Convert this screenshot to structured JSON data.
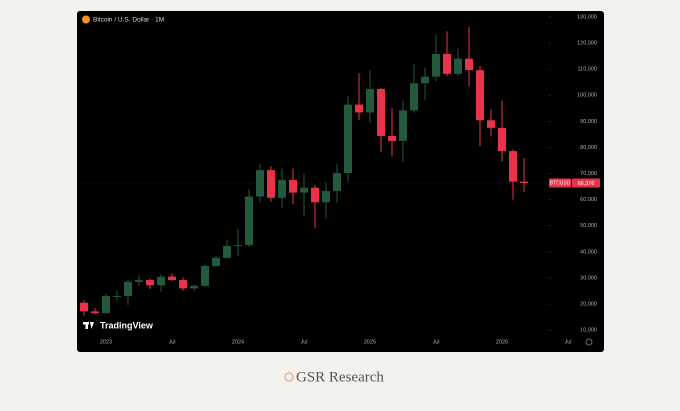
{
  "chart_data": {
    "type": "candlestick",
    "title": "Bitcoin / U.S. Dollar · 1M",
    "watermark": "TradingView",
    "footer": "GSR Research",
    "categories": [
      null,
      null,
      "2023",
      null,
      null,
      null,
      null,
      null,
      "Jul",
      null,
      null,
      null,
      null,
      null,
      "2024",
      null,
      null,
      null,
      null,
      null,
      "Jul",
      null,
      null,
      null,
      null,
      null,
      "2025",
      null,
      null,
      null,
      null,
      null,
      "Jul",
      null,
      null,
      null,
      null,
      null,
      "2026",
      null,
      null,
      null,
      null,
      null,
      "Jul"
    ],
    "open": [
      20500,
      17200,
      16500,
      23100,
      23100,
      28500,
      29200,
      27200,
      30500,
      29200,
      26000,
      27000,
      34600,
      37700,
      42300,
      42600,
      61200,
      71300,
      60700,
      67500,
      62700,
      64600,
      59000,
      63300,
      70200,
      96400,
      93400,
      102400,
      84400,
      82500,
      94200,
      104600,
      107100,
      115800,
      108200,
      114000,
      109600,
      90400,
      87500,
      78600,
      66900,
      null,
      null,
      null,
      null
    ],
    "high": [
      21500,
      18400,
      23900,
      25200,
      29200,
      31000,
      29800,
      31400,
      31800,
      30200,
      27500,
      35200,
      38400,
      44700,
      48900,
      64000,
      73800,
      72800,
      71900,
      71900,
      70000,
      65600,
      66500,
      73600,
      99600,
      108400,
      109600,
      102800,
      95000,
      97900,
      112000,
      110600,
      123200,
      124500,
      117900,
      126200,
      111200,
      94600,
      97900,
      79300,
      76000,
      null,
      null,
      null,
      null
    ],
    "low": [
      15500,
      16300,
      16500,
      21400,
      19600,
      27000,
      25800,
      24800,
      28900,
      25200,
      24900,
      26600,
      34100,
      37600,
      38500,
      41900,
      59000,
      59200,
      56600,
      58400,
      53500,
      49000,
      52600,
      58900,
      66800,
      90500,
      89200,
      78200,
      76600,
      74400,
      93300,
      98200,
      105300,
      107300,
      107300,
      103500,
      80600,
      84400,
      74500,
      60000,
      63000,
      null,
      null,
      null,
      null
    ],
    "close": [
      17200,
      16500,
      23100,
      23100,
      28500,
      29200,
      27200,
      30500,
      29200,
      26000,
      27000,
      34600,
      37700,
      42300,
      42600,
      61200,
      71300,
      60700,
      67500,
      62700,
      64600,
      59000,
      63300,
      70200,
      96400,
      93400,
      102400,
      84400,
      82500,
      94200,
      104600,
      107100,
      115800,
      108200,
      114000,
      109600,
      90400,
      87500,
      78600,
      66900,
      66376,
      null,
      null,
      null,
      null
    ],
    "up_color": "#235a3c",
    "down_color": "#e8334a",
    "ylim": [
      7000,
      131500
    ],
    "yticks": [
      {
        "value": 10000,
        "label": "10,000"
      },
      {
        "value": 20000,
        "label": "20,000"
      },
      {
        "value": 30000,
        "label": "30,000"
      },
      {
        "value": 40000,
        "label": "40,000"
      },
      {
        "value": 50000,
        "label": "50,000"
      },
      {
        "value": 60000,
        "label": "60,000"
      },
      {
        "value": 70000,
        "label": "70,000"
      },
      {
        "value": 80000,
        "label": "80,000"
      },
      {
        "value": 90000,
        "label": "90,000"
      },
      {
        "value": 100000,
        "label": "100,000"
      },
      {
        "value": 110000,
        "label": "110,000"
      },
      {
        "value": 120000,
        "label": "120,000"
      },
      {
        "value": 130000,
        "label": "130,000"
      }
    ],
    "price_tag": {
      "symbol": "BTCUSD",
      "value": 66376,
      "label": "66,376"
    }
  }
}
